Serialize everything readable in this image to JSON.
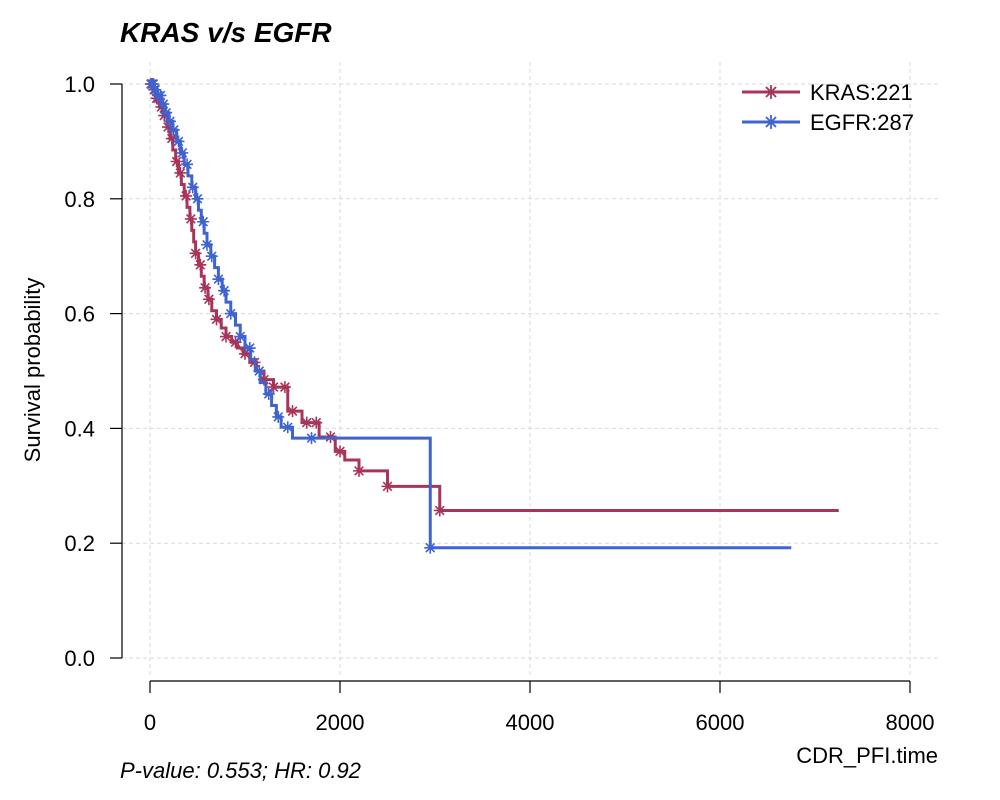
{
  "chart_data": {
    "type": "line",
    "title": "KRAS v/s EGFR",
    "xlabel": "CDR_PFI.time",
    "ylabel": "Survival probability",
    "xlim": [
      0,
      8000
    ],
    "ylim": [
      0,
      1
    ],
    "x_ticks": [
      "0",
      "2000",
      "4000",
      "6000",
      "8000"
    ],
    "y_ticks": [
      "0.0",
      "0.2",
      "0.4",
      "0.6",
      "0.8",
      "1.0"
    ],
    "x_tick_values": [
      0,
      2000,
      4000,
      6000,
      8000
    ],
    "y_tick_values": [
      0,
      0.2,
      0.4,
      0.6,
      0.8,
      1.0
    ],
    "grid": true,
    "legend_position": "top-right",
    "annotation": "P-value: 0.553; HR: 0.92",
    "series": [
      {
        "name": "KRAS:221",
        "color": "#A83458",
        "steps": [
          [
            0,
            1.0
          ],
          [
            30,
            0.99
          ],
          [
            60,
            0.975
          ],
          [
            100,
            0.96
          ],
          [
            140,
            0.945
          ],
          [
            180,
            0.925
          ],
          [
            210,
            0.905
          ],
          [
            240,
            0.885
          ],
          [
            270,
            0.865
          ],
          [
            300,
            0.845
          ],
          [
            330,
            0.825
          ],
          [
            360,
            0.805
          ],
          [
            390,
            0.785
          ],
          [
            420,
            0.765
          ],
          [
            440,
            0.745
          ],
          [
            460,
            0.725
          ],
          [
            480,
            0.705
          ],
          [
            510,
            0.685
          ],
          [
            540,
            0.665
          ],
          [
            570,
            0.645
          ],
          [
            610,
            0.625
          ],
          [
            650,
            0.605
          ],
          [
            700,
            0.59
          ],
          [
            750,
            0.575
          ],
          [
            800,
            0.56
          ],
          [
            860,
            0.55
          ],
          [
            920,
            0.54
          ],
          [
            980,
            0.53
          ],
          [
            1050,
            0.515
          ],
          [
            1120,
            0.5
          ],
          [
            1200,
            0.485
          ],
          [
            1300,
            0.472
          ],
          [
            1450,
            0.43
          ],
          [
            1600,
            0.41
          ],
          [
            1780,
            0.385
          ],
          [
            1950,
            0.36
          ],
          [
            2050,
            0.345
          ],
          [
            2200,
            0.326
          ],
          [
            2500,
            0.299
          ],
          [
            3050,
            0.257
          ],
          [
            7250,
            0.257
          ]
        ],
        "censor_x": [
          10,
          25,
          45,
          70,
          90,
          120,
          150,
          190,
          230,
          280,
          320,
          380,
          430,
          480,
          530,
          580,
          620,
          700,
          800,
          900,
          1000,
          1100,
          1200,
          1300,
          1420,
          1500,
          1650,
          1750,
          1900,
          2000,
          2200,
          2500,
          3050
        ]
      },
      {
        "name": "EGFR:287",
        "color": "#3F63CF",
        "steps": [
          [
            0,
            1.0
          ],
          [
            40,
            0.99
          ],
          [
            80,
            0.98
          ],
          [
            120,
            0.965
          ],
          [
            160,
            0.95
          ],
          [
            200,
            0.935
          ],
          [
            240,
            0.92
          ],
          [
            280,
            0.9
          ],
          [
            320,
            0.88
          ],
          [
            360,
            0.86
          ],
          [
            400,
            0.84
          ],
          [
            440,
            0.82
          ],
          [
            480,
            0.8
          ],
          [
            510,
            0.78
          ],
          [
            540,
            0.76
          ],
          [
            570,
            0.74
          ],
          [
            600,
            0.72
          ],
          [
            640,
            0.7
          ],
          [
            680,
            0.68
          ],
          [
            720,
            0.66
          ],
          [
            760,
            0.64
          ],
          [
            800,
            0.62
          ],
          [
            850,
            0.6
          ],
          [
            900,
            0.58
          ],
          [
            950,
            0.56
          ],
          [
            1000,
            0.54
          ],
          [
            1060,
            0.52
          ],
          [
            1110,
            0.5
          ],
          [
            1160,
            0.48
          ],
          [
            1220,
            0.46
          ],
          [
            1280,
            0.44
          ],
          [
            1330,
            0.42
          ],
          [
            1380,
            0.402
          ],
          [
            1500,
            0.383
          ],
          [
            2950,
            0.192
          ],
          [
            6750,
            0.192
          ]
        ],
        "censor_x": [
          15,
          35,
          55,
          85,
          110,
          140,
          170,
          210,
          250,
          300,
          340,
          390,
          450,
          500,
          560,
          600,
          650,
          720,
          780,
          850,
          950,
          1050,
          1150,
          1250,
          1350,
          1450,
          1700,
          2950
        ]
      }
    ]
  }
}
